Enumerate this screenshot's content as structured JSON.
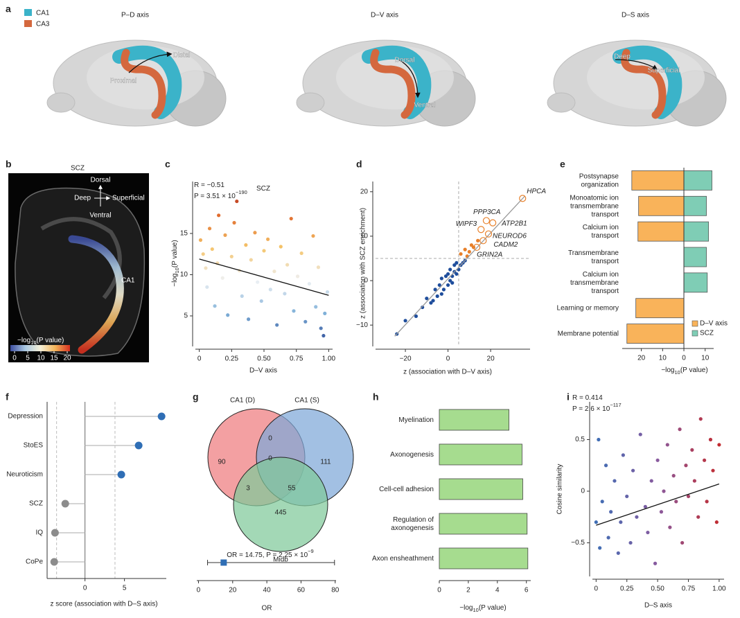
{
  "figure_a": {
    "panel": "a",
    "legend": [
      {
        "name": "CA1",
        "color": "#3bb3c9"
      },
      {
        "name": "CA3",
        "color": "#d4683e"
      }
    ],
    "views": [
      {
        "title": "P–D axis",
        "labels": [
          "Proximal",
          "Distal"
        ]
      },
      {
        "title": "D–V axis",
        "labels": [
          "Dorsal",
          "Ventral"
        ]
      },
      {
        "title": "D–S axis",
        "labels": [
          "Deep",
          "Superficial"
        ]
      }
    ]
  },
  "figure_b": {
    "panel": "b",
    "title": "SCZ",
    "compass": {
      "up": "Dorsal",
      "left": "Deep",
      "right": "Superficial",
      "down": "Ventral"
    },
    "region": "CA1",
    "colorbar": {
      "label": {
        "prefix": "−log",
        "sub": "10",
        "suffix": "(P value)"
      },
      "ticks": [
        0,
        5,
        10,
        15,
        20
      ],
      "colors": [
        "#3d4ea0",
        "#a9c7e0",
        "#f5f0d8",
        "#f2b45a",
        "#d7301f"
      ]
    }
  },
  "chart_data": [
    {
      "panel": "c",
      "type": "scatter",
      "xlabel": "D–V axis",
      "ylabel": {
        "prefix": "−log",
        "sub": "10",
        "suffix": "(P value)"
      },
      "annotations": [
        {
          "text": "R = −0.51"
        },
        {
          "text": "P = 3.51 × 10",
          "sup": "−190"
        },
        {
          "text": "SCZ"
        }
      ],
      "x": [
        0.01,
        0.03,
        0.05,
        0.06,
        0.08,
        0.1,
        0.12,
        0.14,
        0.15,
        0.18,
        0.2,
        0.22,
        0.25,
        0.27,
        0.29,
        0.31,
        0.33,
        0.36,
        0.38,
        0.4,
        0.43,
        0.45,
        0.48,
        0.5,
        0.53,
        0.55,
        0.58,
        0.6,
        0.63,
        0.66,
        0.68,
        0.71,
        0.73,
        0.76,
        0.79,
        0.82,
        0.85,
        0.88,
        0.9,
        0.92,
        0.94,
        0.96,
        0.97,
        0.99
      ],
      "values": [
        14.2,
        12.5,
        10.8,
        8.5,
        15.6,
        13.1,
        6.2,
        11.4,
        17.2,
        9.6,
        14.8,
        5.1,
        12.2,
        16.3,
        18.9,
        10.5,
        7.4,
        13.6,
        4.6,
        11.8,
        15.1,
        9.1,
        6.8,
        12.9,
        14.3,
        8.2,
        10.4,
        3.9,
        13.4,
        7.7,
        11.2,
        16.8,
        5.6,
        9.8,
        12.6,
        4.3,
        8.9,
        14.7,
        6.1,
        10.9,
        3.5,
        2.6,
        5.3,
        7.9
      ],
      "colormap": [
        "#233f8f",
        "#7fb0d8",
        "#eef1f4",
        "#f5c46a",
        "#e06a2c",
        "#9e1a1a"
      ],
      "color_by": "y",
      "fit": {
        "x": [
          0,
          1
        ],
        "values": [
          11.9,
          7.5
        ],
        "color": "#111111"
      },
      "xlim": [
        -0.03,
        1.03
      ],
      "ylim": [
        1.3,
        21.3
      ],
      "xticks": [
        0,
        0.25,
        {
          "value": 0.5,
          "label": "0.50"
        },
        0.75,
        {
          "value": 1,
          "label": "1.00"
        }
      ],
      "yticks": [
        5,
        10,
        15
      ]
    },
    {
      "panel": "d",
      "type": "scatter",
      "xlabel": "z (association with D–V axis)",
      "ylabel": "z (association with SCZ enrichment)",
      "x": [
        -24,
        -20,
        -15,
        -12,
        -10,
        -8,
        -7,
        -6,
        -5,
        -4,
        -3,
        -3,
        -2,
        -1,
        0,
        0,
        1,
        1,
        2,
        2,
        3,
        3,
        4,
        4,
        5,
        6,
        7,
        8,
        6,
        8,
        9,
        10,
        11,
        12,
        14
      ],
      "values": [
        -12,
        -9,
        -8,
        -6,
        -4,
        -5,
        -4.5,
        -2,
        -3.5,
        -1,
        0.5,
        -3,
        -2,
        1,
        -1,
        1.5,
        0,
        2.5,
        1,
        -0.5,
        2,
        3.5,
        1.5,
        4,
        2.5,
        3.5,
        4,
        4.5,
        6,
        7,
        5.5,
        6.5,
        8,
        7.5,
        9
      ],
      "point_colors": {
        "below": "#1f4e9c",
        "above": "#e8802a"
      },
      "thresholds": {
        "x": 5,
        "y": 5
      },
      "fit": {
        "x": [
          -25,
          36
        ],
        "values": [
          -12.5,
          19
        ],
        "color": "#999999"
      },
      "genes": [
        {
          "name": "HPCA",
          "x": 35,
          "y": 18.5
        },
        {
          "name": "PPP3CA",
          "x": 18,
          "y": 13.5
        },
        {
          "name": "ATP2B1",
          "x": 21,
          "y": 13
        },
        {
          "name": "WIPF3",
          "x": 15.5,
          "y": 11.5
        },
        {
          "name": "NEUROD6",
          "x": 19,
          "y": 10.5
        },
        {
          "name": "CADM2",
          "x": 16.5,
          "y": 9
        },
        {
          "name": "GRIN2A",
          "x": 13.5,
          "y": 7.5
        }
      ],
      "xlim": [
        -34,
        38.5
      ],
      "ylim": [
        -14.8,
        22.3
      ],
      "xticks": [
        {
          "value": -20,
          "label": "−20"
        },
        0,
        20
      ],
      "yticks": [
        {
          "value": -10,
          "label": "−10"
        },
        0,
        10,
        20
      ]
    },
    {
      "panel": "e",
      "type": "diverging_bar",
      "categories": [
        [
          "Postsynapse",
          "organization"
        ],
        [
          "Monoatomic ion",
          "transmembrane",
          "transport"
        ],
        [
          "Calcium ion",
          "transport"
        ],
        [
          "Transmembrane",
          "transport"
        ],
        [
          "Calcium ion",
          "transmembrane",
          "transport"
        ],
        [
          "Learning or memory"
        ],
        [
          "Membrane potential"
        ]
      ],
      "series": [
        {
          "name": "D–V axis",
          "color": "#f9b35a",
          "values": [
            -24.5,
            -21.3,
            -21.6,
            null,
            null,
            -22.6,
            -26.8
          ]
        },
        {
          "name": "SCZ",
          "color": "#7fcdb5",
          "values": [
            13.2,
            10.6,
            11.6,
            10.6,
            11,
            null,
            null
          ]
        }
      ],
      "xlabel": {
        "prefix": "−log",
        "sub": "10",
        "suffix": "(P value)"
      },
      "xlim": [
        -29,
        14
      ],
      "xticks": [
        {
          "value": -20,
          "label": "20"
        },
        {
          "value": -10,
          "label": "10"
        },
        0,
        10
      ],
      "legend": "lower right"
    },
    {
      "panel": "f",
      "type": "lollipop",
      "categories": [
        "Depression",
        "StoES",
        "Neuroticism",
        "SCZ",
        "IQ",
        "CoPe"
      ],
      "values": [
        9.7,
        6.8,
        4.6,
        -2.5,
        -3.8,
        -3.9
      ],
      "colors": [
        "#2f6eb5",
        "#2f6eb5",
        "#2f6eb5",
        "#8c8c8c",
        "#8c8c8c",
        "#8c8c8c"
      ],
      "thresholds": [
        -3.6,
        3.8
      ],
      "xlabel": "z score (association with D–S axis)",
      "xlim": [
        -4.8,
        10.3
      ],
      "xticks": [
        0,
        5
      ]
    },
    {
      "panel": "g",
      "type": "venn",
      "sets": [
        "CA1 (D)",
        "CA1 (S)",
        "Midb"
      ],
      "colors": [
        "#ee7b7e",
        "#7ea7d8",
        "#7fc99a"
      ],
      "regions": [
        90,
        0,
        111,
        0,
        3,
        55,
        445
      ]
    },
    {
      "type": "forest",
      "value": 14.75,
      "ci": [
        5.3,
        79.6
      ],
      "color": "#2f6eb5",
      "annotation": {
        "text": "OR = 14.75, P = 2.25 × 10",
        "sup": "−9"
      },
      "xlabel": "OR",
      "xlim": [
        -1,
        80.5
      ],
      "xticks": [
        0,
        20,
        40,
        60,
        80
      ]
    },
    {
      "panel": "h",
      "type": "bar",
      "categories": [
        [
          "Myelination"
        ],
        [
          "Axonogenesis"
        ],
        [
          "Cell-cell adhesion"
        ],
        [
          "Regulation of",
          "axonogenesis"
        ],
        [
          "Axon ensheathment"
        ]
      ],
      "values": [
        4.8,
        5.7,
        5.75,
        6.05,
        6.1
      ],
      "color": "#a6dc8f",
      "xlabel": {
        "prefix": "−log",
        "sub": "10",
        "suffix": "(P value)"
      },
      "xlim": [
        0,
        6.3
      ],
      "xticks": [
        0,
        2,
        4,
        6
      ]
    },
    {
      "panel": "i",
      "type": "scatter",
      "xlabel": "D–S axis",
      "ylabel": "Cosine similarity",
      "annotations": [
        {
          "text": "R = 0.414"
        },
        {
          "text": "P = 2.6 × 10",
          "sup": "−117"
        }
      ],
      "x": [
        0.0,
        0.02,
        0.03,
        0.05,
        0.08,
        0.1,
        0.12,
        0.15,
        0.18,
        0.2,
        0.22,
        0.25,
        0.28,
        0.3,
        0.33,
        0.36,
        0.4,
        0.42,
        0.45,
        0.48,
        0.5,
        0.53,
        0.55,
        0.58,
        0.6,
        0.63,
        0.65,
        0.68,
        0.7,
        0.73,
        0.75,
        0.78,
        0.8,
        0.83,
        0.85,
        0.88,
        0.9,
        0.93,
        0.95,
        0.98,
        1.0
      ],
      "values": [
        -0.3,
        0.5,
        -0.55,
        -0.1,
        0.25,
        -0.45,
        -0.2,
        0.1,
        -0.6,
        -0.3,
        0.35,
        -0.05,
        -0.5,
        0.2,
        -0.25,
        0.55,
        -0.15,
        -0.4,
        0.1,
        -0.7,
        0.3,
        -0.2,
        0.0,
        0.45,
        -0.35,
        0.15,
        -0.1,
        0.6,
        -0.5,
        0.25,
        -0.05,
        0.4,
        0.1,
        -0.25,
        0.7,
        0.3,
        -0.1,
        0.5,
        0.2,
        -0.3,
        0.45
      ],
      "colormap": [
        "#3b6fb6",
        "#8a5a9e",
        "#c62828"
      ],
      "color_by": "x",
      "fit": {
        "x": [
          0,
          1
        ],
        "values": [
          -0.33,
          0.07
        ],
        "color": "#111111"
      },
      "xlim": [
        -0.03,
        1.04
      ],
      "ylim": [
        -0.826,
        0.866
      ],
      "xticks": [
        0,
        0.25,
        {
          "value": 0.5,
          "label": "0.50"
        },
        0.75,
        {
          "value": 1,
          "label": "1.00"
        }
      ],
      "yticks": [
        {
          "value": -0.5,
          "label": "−0.5"
        },
        0,
        0.5
      ]
    }
  ]
}
